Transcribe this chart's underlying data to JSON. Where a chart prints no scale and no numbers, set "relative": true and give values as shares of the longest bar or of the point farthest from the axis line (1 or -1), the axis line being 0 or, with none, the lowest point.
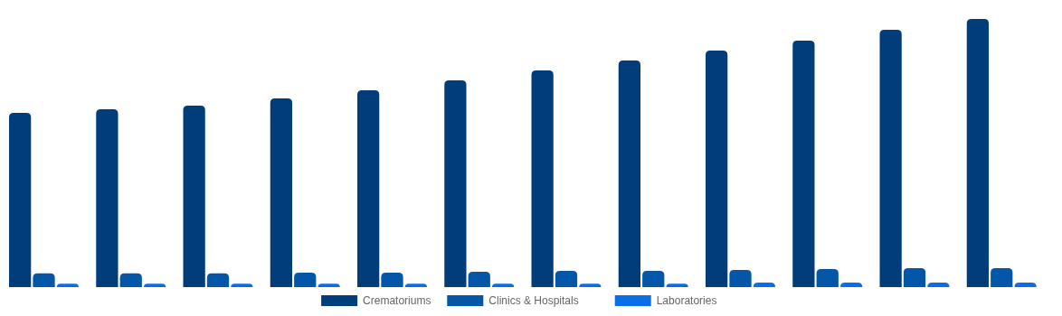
{
  "chart_data": {
    "type": "bar",
    "relative": true,
    "categories": [
      null,
      null,
      null,
      null,
      null,
      null,
      null,
      null,
      null,
      null,
      null,
      null
    ],
    "series": [
      {
        "name": "Crematoriums",
        "color": "#023d7b",
        "values": [
          0.65,
          0.663,
          0.677,
          0.704,
          0.734,
          0.771,
          0.808,
          0.845,
          0.882,
          0.919,
          0.96,
          1
        ]
      },
      {
        "name": "Clinics & Hospitals",
        "color": "#0457a8",
        "values": [
          0.051,
          0.051,
          0.051,
          0.054,
          0.054,
          0.057,
          0.061,
          0.061,
          0.064,
          0.067,
          0.071,
          0.071
        ]
      },
      {
        "name": "Laboratories",
        "color": "#0a6ee6",
        "values": [
          0.013,
          0.013,
          0.013,
          0.013,
          0.013,
          0.013,
          0.013,
          0.013,
          0.017,
          0.017,
          0.017,
          0.017
        ]
      }
    ],
    "legend": "bottom"
  }
}
